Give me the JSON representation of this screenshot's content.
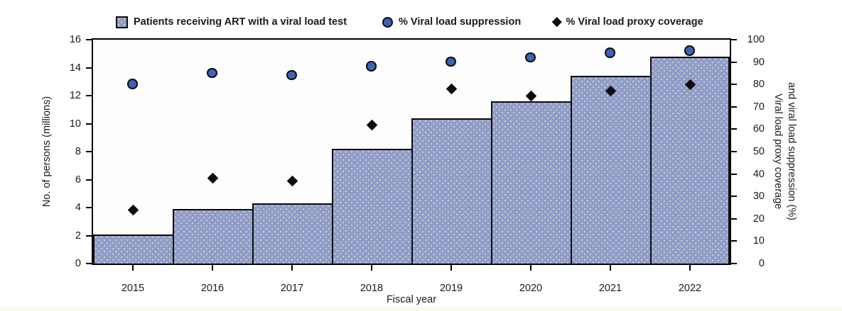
{
  "legend": {
    "bars_label": "Patients receiving ART with a viral load test",
    "suppression_label": "% Viral load suppression",
    "proxy_label": "% Viral load proxy coverage"
  },
  "axes": {
    "left_title": "No. of persons (millions)",
    "right_title_line1": "Viral load proxy coverage",
    "right_title_line2": "and viral load suppression (%)",
    "x_title": "Fiscal year"
  },
  "chart_data": {
    "type": "bar",
    "subtype": "bar-with-scatter-overlay",
    "categories": [
      "2015",
      "2016",
      "2017",
      "2018",
      "2019",
      "2020",
      "2021",
      "2022"
    ],
    "series": [
      {
        "name": "Patients receiving ART with a viral load test",
        "type": "bar",
        "axis": "left",
        "marker": "square",
        "values": [
          2.1,
          3.9,
          4.3,
          8.2,
          10.4,
          11.6,
          13.4,
          14.8
        ]
      },
      {
        "name": "% Viral load suppression",
        "type": "scatter",
        "axis": "right",
        "marker": "circle",
        "values": [
          80,
          85,
          84,
          88,
          90,
          92,
          94,
          95
        ]
      },
      {
        "name": "% Viral load proxy coverage",
        "type": "scatter",
        "axis": "right",
        "marker": "diamond",
        "values": [
          24,
          38,
          37,
          62,
          78,
          75,
          77,
          80
        ]
      }
    ],
    "left_axis": {
      "min": 0,
      "max": 16,
      "step": 2
    },
    "right_axis": {
      "min": 0,
      "max": 100,
      "step": 10
    },
    "xlabel": "Fiscal year",
    "ylabel_left": "No. of persons (millions)",
    "ylabel_right": "Viral load proxy coverage and viral load suppression (%)",
    "grid": false,
    "legend_position": "top"
  },
  "colors": {
    "bar_fill": "#8c9bd0",
    "bar_dot_pattern": "#cfc8a7",
    "circle_marker_fill": "#3e63b6",
    "diamond_marker": "#0d0d0d",
    "axis_line": "#000000",
    "text": "#1a1a1a",
    "bottom_strip": "#f8f9e6"
  }
}
